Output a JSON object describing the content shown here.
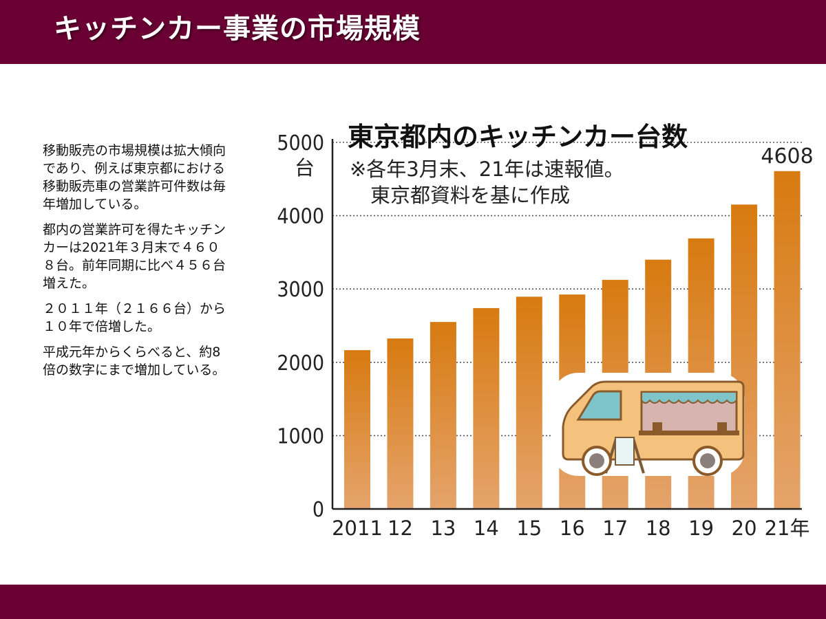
{
  "header": {
    "title": "キッチンカー事業の市場規模"
  },
  "body_text": {
    "paragraphs": [
      "移動販売の市場規模は拡大傾向であり、例えば東京都における移動販売車の営業許可件数は毎年増加している。",
      "都内の営業許可を得たキッチンカーは2021年３月末で４６０８台。前年同期に比べ４５６台増えた。",
      "２０１１年（２１６６台）から１０年で倍増した。",
      "平成元年からくらべると、約8倍の数字にまで増加している。"
    ]
  },
  "colors": {
    "brand": "#6a0033",
    "bar_top": "#d77a10",
    "bar_bottom": "#e5a46c",
    "gridline": "#555555"
  },
  "illustration": {
    "icon": "food-truck-icon"
  },
  "chart_data": {
    "type": "bar",
    "title": "東京都内のキッチンカー台数",
    "subtitle_lines": [
      "※各年3月末、21年は速報値。",
      "東京都資料を基に作成"
    ],
    "unit": "台",
    "categories": [
      "2011",
      "12",
      "13",
      "14",
      "15",
      "16",
      "17",
      "18",
      "19",
      "20",
      "21年"
    ],
    "values": [
      2166,
      2325,
      2550,
      2740,
      2895,
      2925,
      3125,
      3400,
      3690,
      4152,
      4608
    ],
    "ylim": [
      0,
      5000
    ],
    "yticks": [
      0,
      1000,
      2000,
      3000,
      4000,
      5000
    ],
    "grid": "horizontal-dotted",
    "value_labels": [
      {
        "index": 10,
        "text": "4608"
      }
    ]
  }
}
